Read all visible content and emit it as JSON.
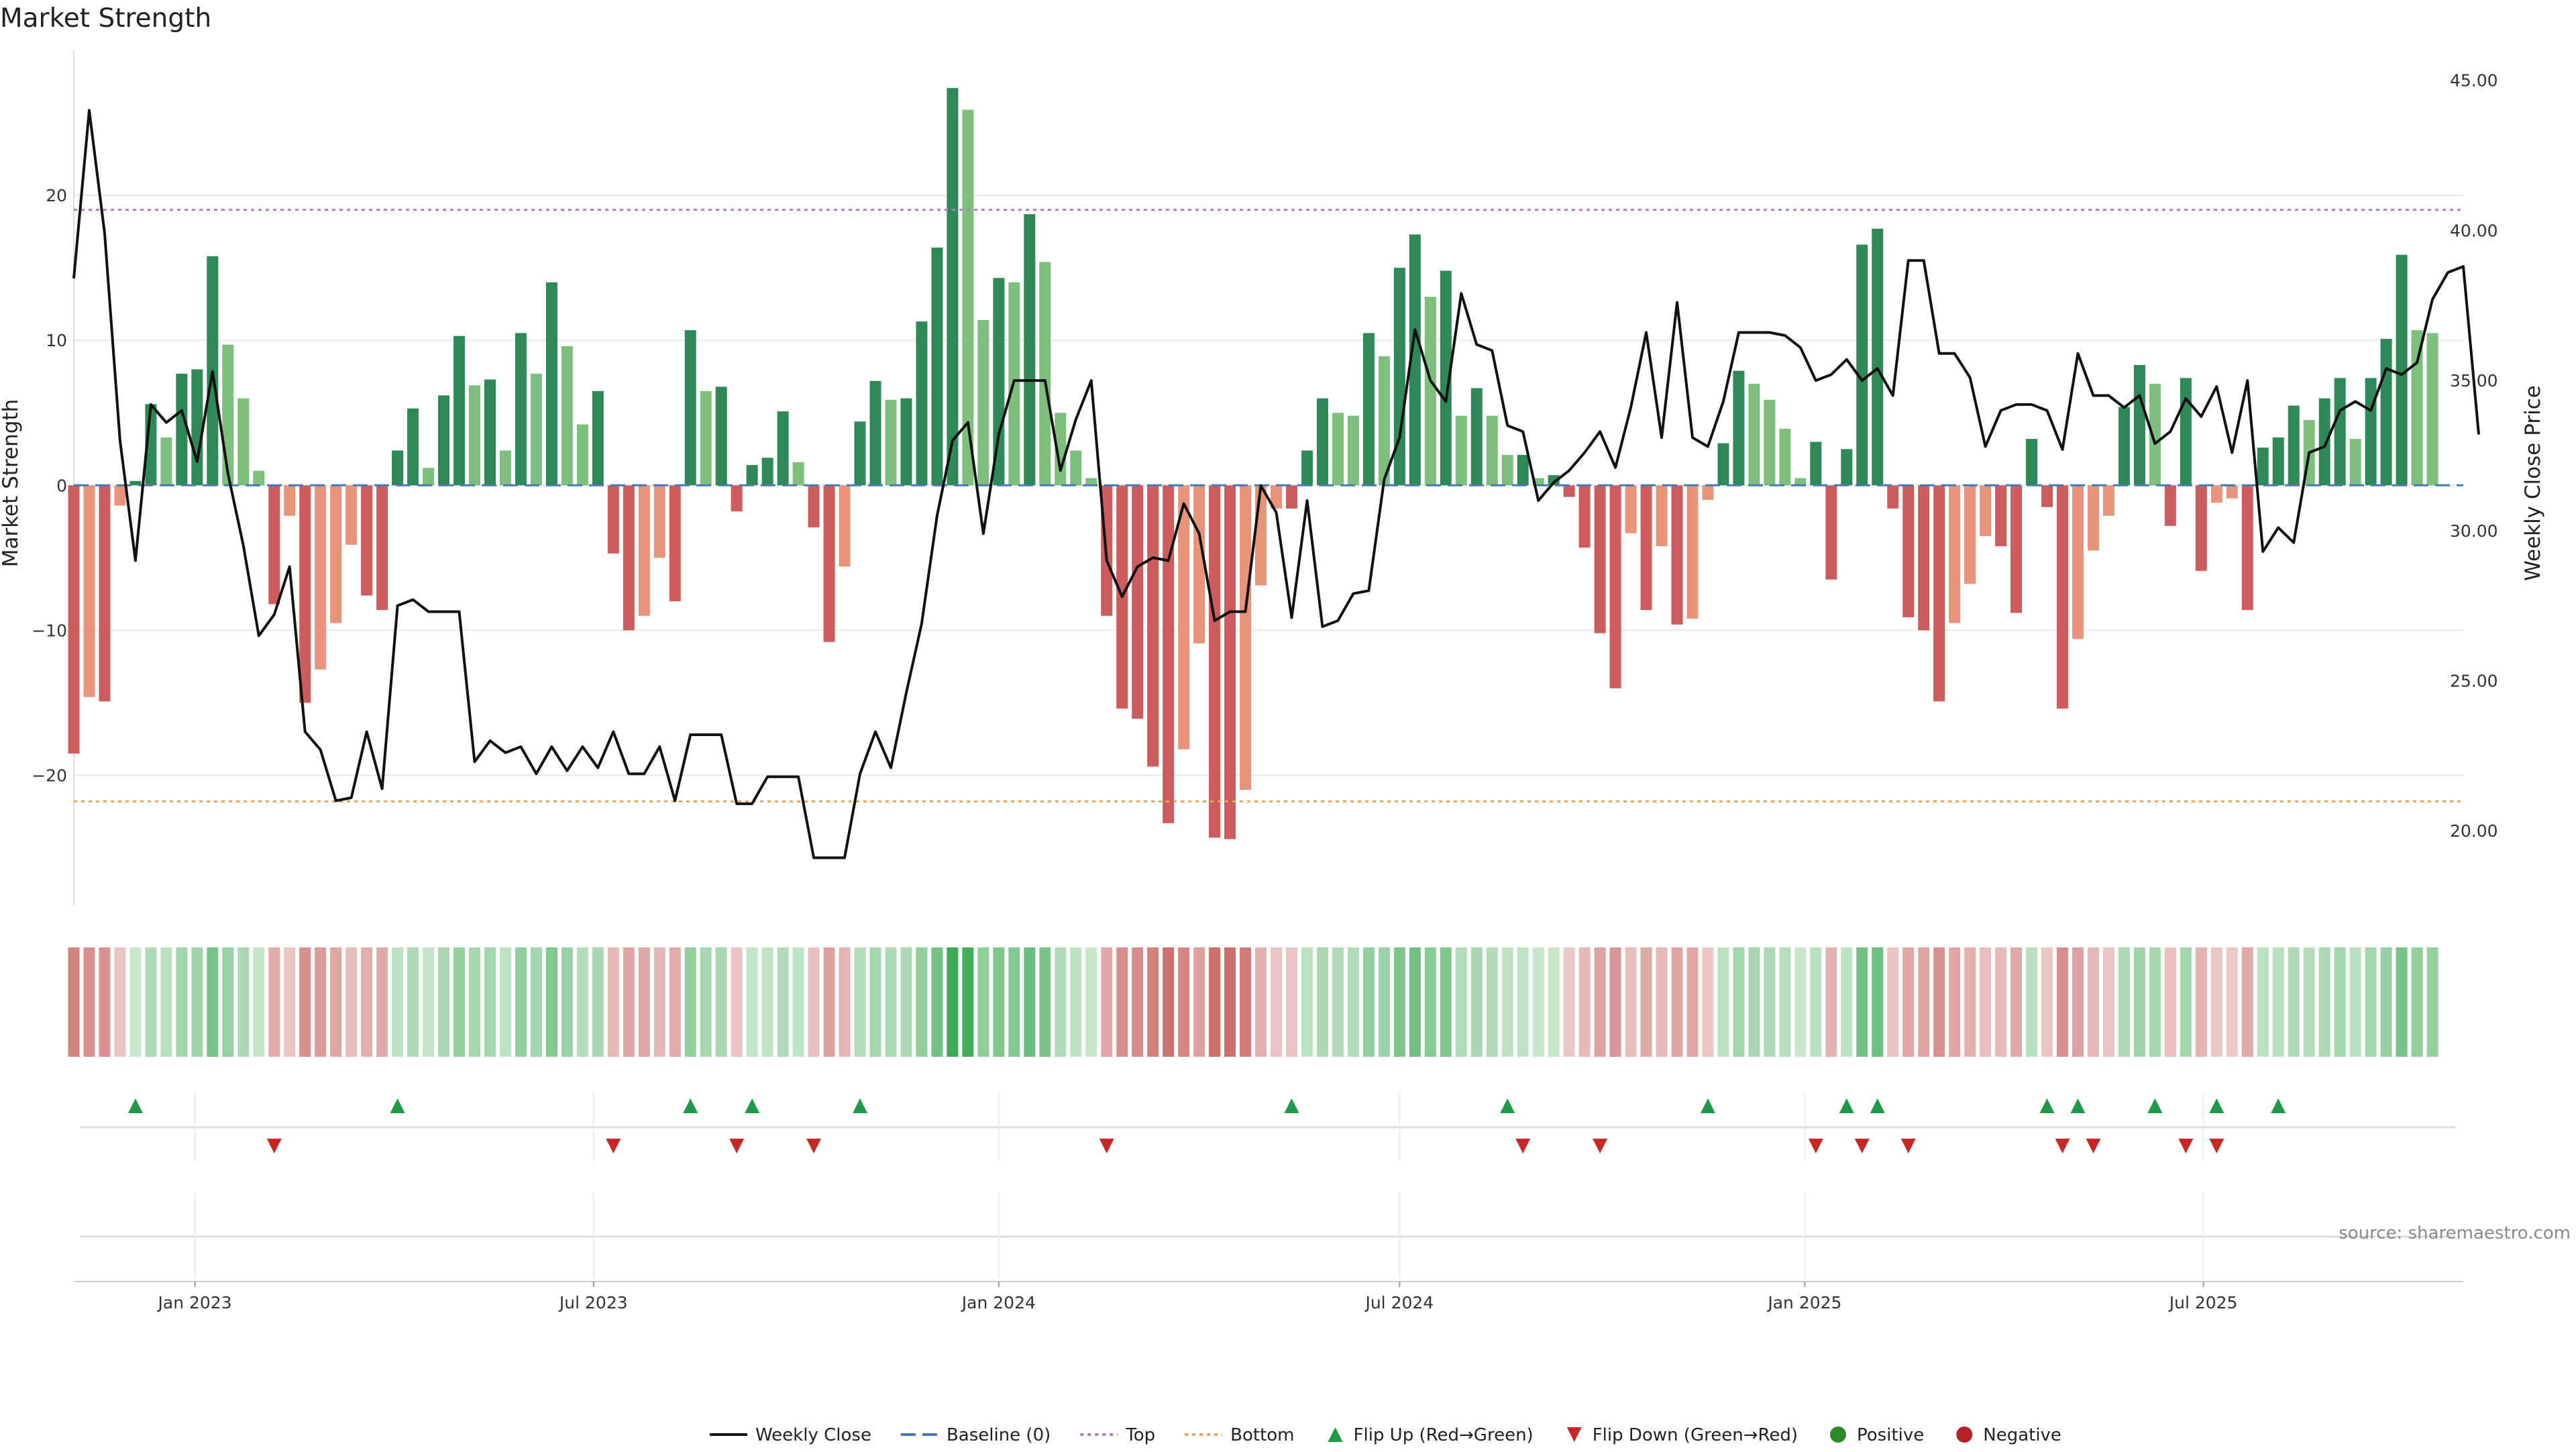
{
  "chart_data": {
    "type": "bar",
    "title": "Market Strength",
    "ylabel": "Market Strength",
    "y2label": "Weekly Close Price",
    "ylim": [
      -29,
      30
    ],
    "y2lim": [
      17.5,
      46
    ],
    "y_ticks": [
      -20,
      -10,
      0,
      10,
      20
    ],
    "y2_ticks": [
      "20.00",
      "25.00",
      "30.00",
      "35.00",
      "40.00",
      "45.00"
    ],
    "top_level": 19,
    "bottom_level": -21.8,
    "x_start": "2022-11-07",
    "x_end": "2025-10-27",
    "x_ticks": [
      {
        "label": "Jan 2023",
        "date": "2023-01-01"
      },
      {
        "label": "Jul 2023",
        "date": "2023-07-01"
      },
      {
        "label": "Jan 2024",
        "date": "2024-01-01"
      },
      {
        "label": "Jul 2024",
        "date": "2024-07-01"
      },
      {
        "label": "Jan 2025",
        "date": "2025-01-01"
      },
      {
        "label": "Jul 2025",
        "date": "2025-07-01"
      }
    ],
    "strength": [
      -18.5,
      -14.6,
      -14.9,
      -1.4,
      0.3,
      5.6,
      3.3,
      7.7,
      8.0,
      15.8,
      9.7,
      6.0,
      1.0,
      -8.2,
      -2.1,
      -15.0,
      -12.7,
      -9.5,
      -4.1,
      -7.6,
      -8.6,
      2.4,
      5.3,
      1.2,
      6.2,
      10.3,
      6.9,
      7.3,
      2.4,
      10.5,
      7.7,
      14.0,
      9.6,
      4.2,
      6.5,
      -4.7,
      -10.0,
      -9.0,
      -5.0,
      -8.0,
      10.7,
      6.5,
      6.8,
      -1.8,
      1.4,
      1.9,
      5.1,
      1.6,
      -2.9,
      -10.8,
      -5.6,
      4.4,
      7.2,
      5.9,
      6.0,
      11.3,
      16.4,
      27.4,
      25.9,
      11.4,
      14.3,
      14.0,
      18.7,
      15.4,
      5.0,
      2.4,
      0.5,
      -9.0,
      -15.4,
      -16.1,
      -19.4,
      -23.3,
      -18.2,
      -10.9,
      -24.3,
      -24.4,
      -21.0,
      -6.9,
      -1.6,
      -1.6,
      2.4,
      6.0,
      5.0,
      4.8,
      10.5,
      8.9,
      15.0,
      17.3,
      13.0,
      14.8,
      4.8,
      6.7,
      4.8,
      2.1,
      2.1,
      0.5,
      0.7,
      -0.8,
      -4.3,
      -10.2,
      -14.0,
      -3.3,
      -8.6,
      -4.2,
      -9.6,
      -9.2,
      -1.0,
      2.9,
      7.9,
      7.0,
      5.9,
      3.9,
      0.5,
      3.0,
      -6.5,
      2.5,
      16.6,
      17.7,
      -1.6,
      -9.1,
      -10.0,
      -14.9,
      -9.5,
      -6.8,
      -3.5,
      -4.2,
      -8.8,
      3.2,
      -1.5,
      -15.4,
      -10.6,
      -4.5,
      -2.1,
      5.4,
      8.3,
      7.0,
      -2.8,
      7.4,
      -5.9,
      -1.2,
      -0.9,
      -8.6,
      2.6,
      3.3,
      5.5,
      4.5,
      6.0,
      7.4,
      3.2,
      7.4,
      10.1,
      15.9,
      10.7,
      10.5
    ],
    "weekly_close": [
      38.4,
      44.0,
      39.9,
      33.0,
      29.0,
      34.2,
      33.6,
      34.0,
      32.3,
      35.3,
      31.9,
      29.5,
      26.5,
      27.2,
      28.8,
      23.3,
      22.7,
      21.0,
      21.1,
      23.3,
      21.4,
      27.5,
      27.7,
      27.3,
      27.3,
      27.3,
      22.3,
      23.0,
      22.6,
      22.8,
      21.9,
      22.8,
      22.0,
      22.8,
      22.1,
      23.3,
      21.9,
      21.9,
      22.8,
      21.0,
      23.2,
      23.2,
      23.2,
      20.9,
      20.9,
      21.8,
      21.8,
      21.8,
      19.1,
      19.1,
      19.1,
      21.9,
      23.3,
      22.1,
      24.6,
      26.9,
      30.5,
      33.0,
      33.6,
      29.9,
      33.2,
      35.0,
      35.0,
      35.0,
      32.0,
      33.7,
      35.0,
      29.0,
      27.8,
      28.8,
      29.1,
      29.0,
      30.9,
      29.9,
      27.0,
      27.3,
      27.3,
      31.5,
      30.6,
      27.1,
      31.0,
      26.8,
      27.0,
      27.9,
      28.0,
      31.7,
      33.1,
      36.7,
      35.0,
      34.3,
      37.9,
      36.2,
      36.0,
      33.5,
      33.3,
      31.0,
      31.6,
      32.0,
      32.6,
      33.3,
      32.1,
      34.1,
      36.6,
      33.1,
      37.6,
      33.1,
      32.8,
      34.3,
      36.6,
      36.6,
      36.6,
      36.5,
      36.1,
      35.0,
      35.2,
      35.7,
      35.0,
      35.4,
      34.5,
      39.0,
      39.0,
      35.9,
      35.9,
      35.1,
      32.8,
      34.0,
      34.2,
      34.2,
      34.0,
      32.7,
      35.9,
      34.5,
      34.5,
      34.1,
      34.5,
      32.9,
      33.3,
      34.4,
      33.8,
      34.8,
      32.6,
      35.0,
      29.3,
      30.1,
      29.6,
      32.6,
      32.8,
      34.0,
      34.3,
      34.0,
      35.4,
      35.2,
      35.6,
      37.7,
      38.6,
      38.8,
      33.2
    ],
    "flip_up_weeks": [
      4,
      21,
      40,
      44,
      51,
      79,
      93,
      106,
      115,
      117,
      128,
      130,
      135,
      139,
      143
    ],
    "flip_down_weeks": [
      13,
      35,
      43,
      48,
      67,
      94,
      99,
      113,
      116,
      119,
      129,
      131,
      137,
      139
    ],
    "colors": {
      "pos_strong": "#2e8857",
      "pos_light": "#7dbf7d",
      "neg_strong": "#cd5c5c",
      "neg_light": "#e8947a",
      "flip_up": "#1e9a46",
      "flip_down": "#c62828",
      "positive_dot": "#2a8a2a",
      "negative_dot": "#b22222",
      "top_line": "#b07bb8",
      "bottom_line": "#e8a45a",
      "baseline": "#4a78b5"
    },
    "legend": {
      "position": "bottom-center",
      "items": [
        {
          "label": "Weekly Close",
          "kind": "line"
        },
        {
          "label": "Baseline (0)",
          "kind": "dash-blue"
        },
        {
          "label": "Top",
          "kind": "dot-purple"
        },
        {
          "label": "Bottom",
          "kind": "dot-orange"
        },
        {
          "label": "Flip Up (Red→Green)",
          "kind": "tri-up"
        },
        {
          "label": "Flip Down (Green→Red)",
          "kind": "tri-down"
        },
        {
          "label": "Positive",
          "kind": "dot-green"
        },
        {
          "label": "Negative",
          "kind": "dot-red"
        }
      ]
    },
    "source_text": "source: sharemaestro.com"
  }
}
